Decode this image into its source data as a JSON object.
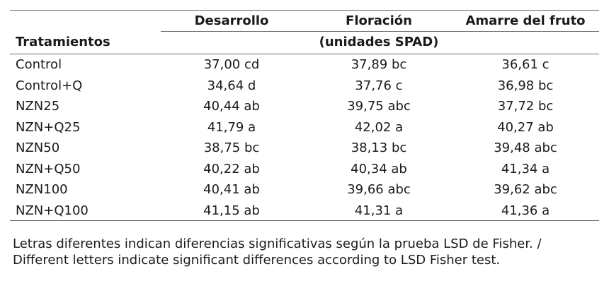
{
  "table": {
    "headers": {
      "treatments": "Tratamientos",
      "desarrollo": "Desarrollo",
      "floracion": "Floración",
      "amarre": "Amarre del fruto",
      "units": "(unidades SPAD)"
    },
    "rows": [
      {
        "treatment": "Control",
        "desarrollo": "37,00 cd",
        "floracion": "37,89 bc",
        "amarre": "36,61 c"
      },
      {
        "treatment": "Control+Q",
        "desarrollo": "34,64 d",
        "floracion": "37,76 c",
        "amarre": "36,98 bc"
      },
      {
        "treatment": "NZN25",
        "desarrollo": "40,44 ab",
        "floracion": "39,75 abc",
        "amarre": "37,72 bc"
      },
      {
        "treatment": "NZN+Q25",
        "desarrollo": "41,79 a",
        "floracion": "42,02 a",
        "amarre": "40,27 ab"
      },
      {
        "treatment": "NZN50",
        "desarrollo": "38,75 bc",
        "floracion": "38,13 bc",
        "amarre": "39,48 abc"
      },
      {
        "treatment": "NZN+Q50",
        "desarrollo": "40,22 ab",
        "floracion": "40,34 ab",
        "amarre": "41,34 a"
      },
      {
        "treatment": "NZN100",
        "desarrollo": "40,41 ab",
        "floracion": "39,66 abc",
        "amarre": "39,62 abc"
      },
      {
        "treatment": "NZN+Q100",
        "desarrollo": "41,15 ab",
        "floracion": "41,31 a",
        "amarre": "41,36 a"
      }
    ]
  },
  "footnote": {
    "line1": "Letras diferentes indican diferencias significativas según la prueba LSD de Fisher. /",
    "line2": "Different letters indicate significant differences according to LSD Fisher test."
  }
}
